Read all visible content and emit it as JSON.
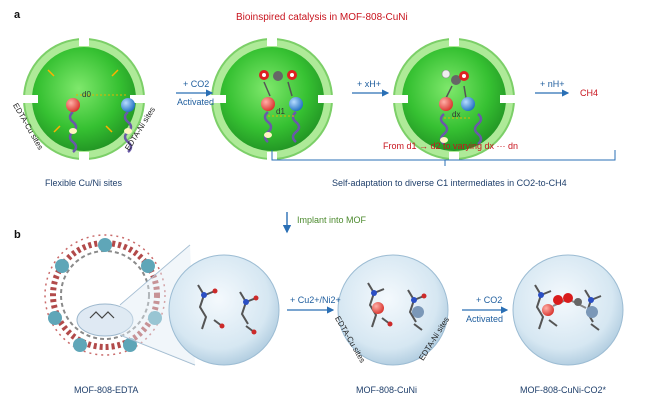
{
  "panel_a": {
    "label": "a",
    "title": "Bioinspired catalysis in MOF-808-CuNi",
    "cu_site_label": "EDTA-Cu sites",
    "ni_site_label": "EDTA-Ni sites",
    "d0": "d0",
    "d1": "d1",
    "dx": "dx",
    "step1_top": "+ CO2",
    "step1_bottom": "Activated",
    "step2": "+ xH+",
    "step3": "+ nH+",
    "product": "CH4",
    "caption_left": "Flexible Cu/Ni sites",
    "range_text": "From d1 → d2 to varying dx ··· dn",
    "caption_right": "Self-adaptation to diverse C1 intermediates in CO2-to-CH4"
  },
  "implant_label": "Implant into MOF",
  "panel_b": {
    "label": "b",
    "step1": "+ Cu2+/Ni2+",
    "step2_top": "+ CO2",
    "step2_bottom": "Activated",
    "cu_site_label": "EDTA-Cu sites",
    "ni_site_label": "EDTA-Ni sites",
    "caption_1": "MOF-808-EDTA",
    "caption_2": "MOF-808-CuNi",
    "caption_3": "MOF-808-CuNi-CO2*"
  },
  "colors": {
    "cage_green": "#3fc73a",
    "shell_green": "#a6e68f",
    "bubble_blue": "#cfe3f0",
    "cu_red": "#e8504a",
    "ni_blue": "#3b8fe0",
    "arrow_blue": "#2a6fb5",
    "title_red": "#c8141e"
  }
}
